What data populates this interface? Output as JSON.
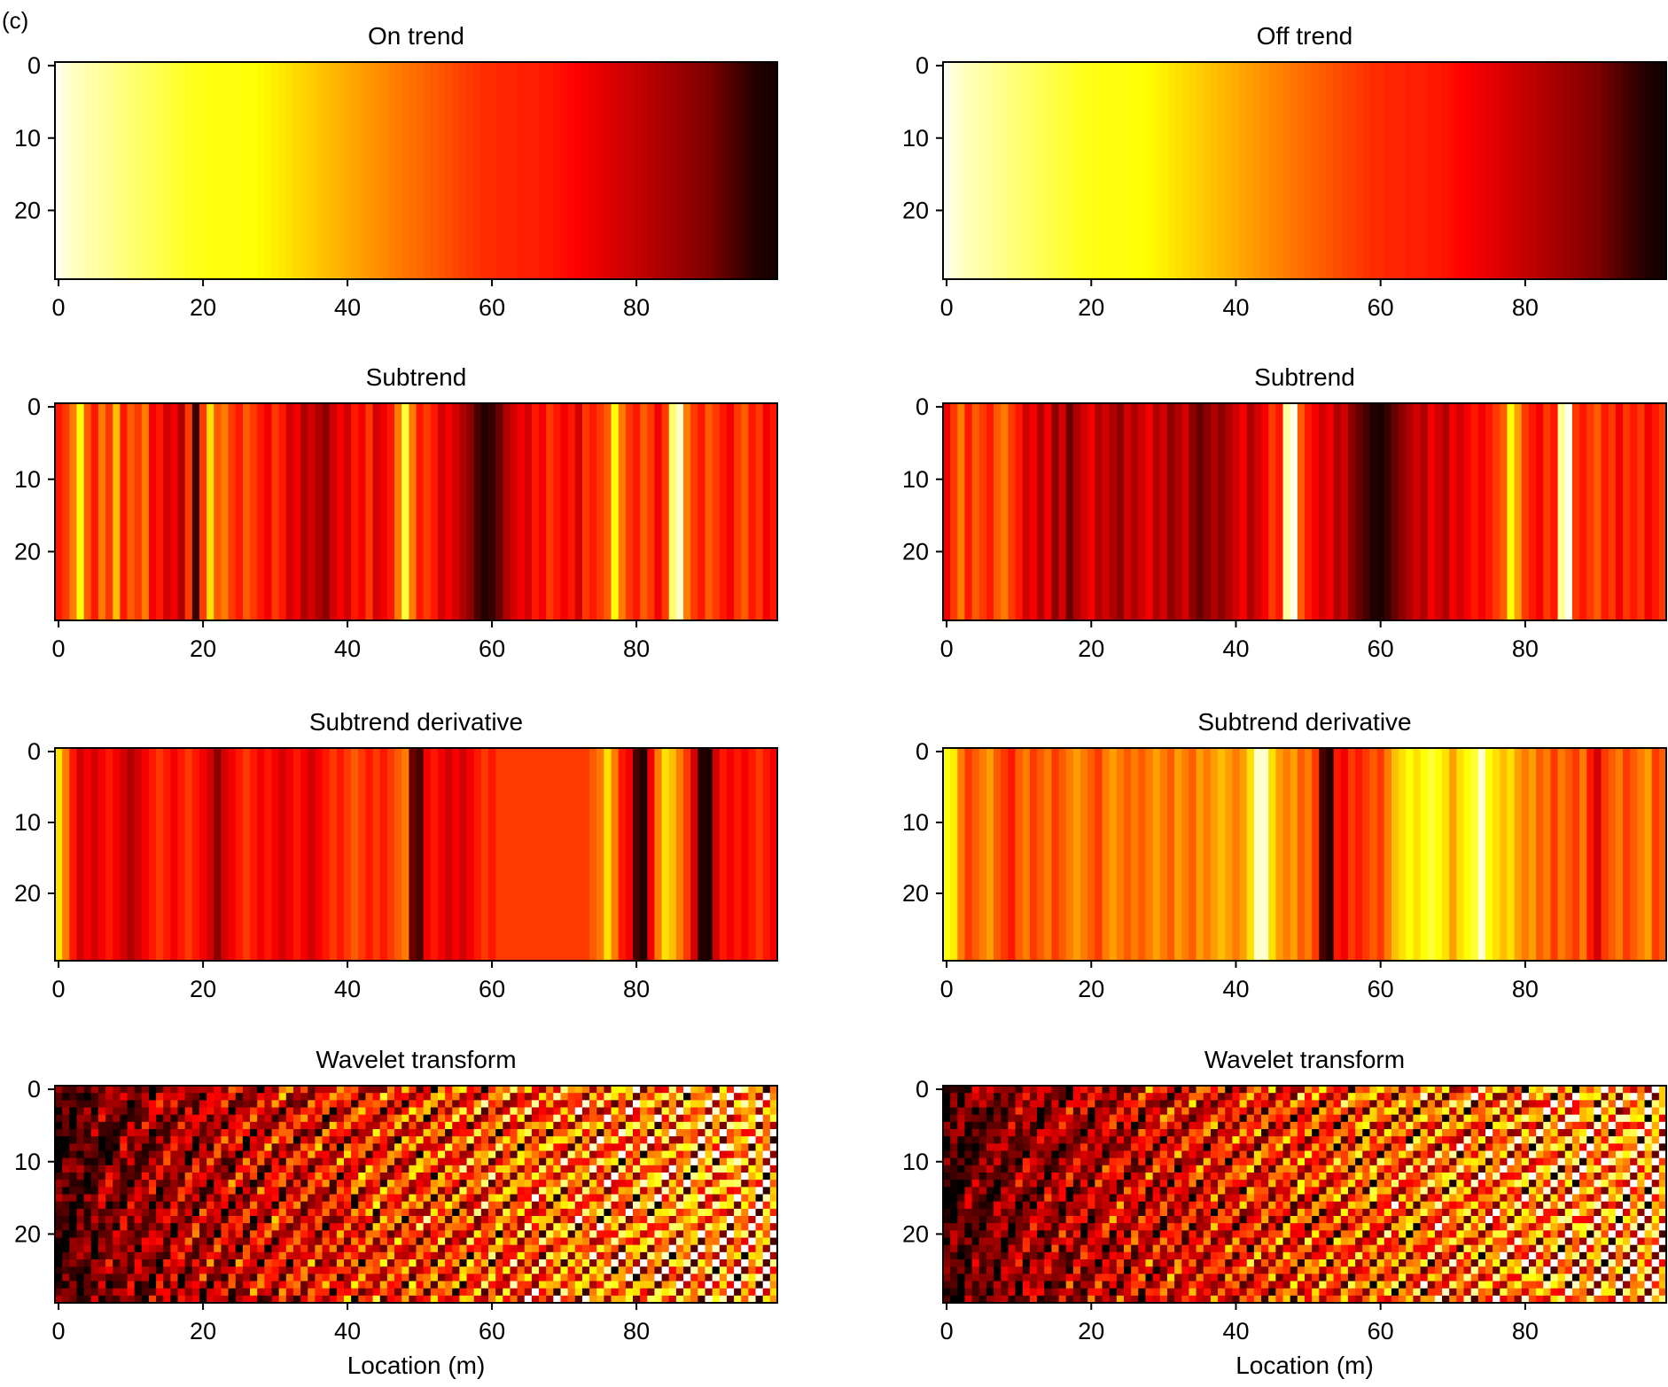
{
  "panel_label": "(c)",
  "chart_data": [
    {
      "id": "on-trend",
      "type": "heatmap",
      "title": "On trend",
      "xlabel": "",
      "ylabel": "",
      "xlim": [
        0,
        99
      ],
      "ylim": [
        0,
        29
      ],
      "xticks": [
        "0",
        "20",
        "40",
        "60",
        "80"
      ],
      "yticks": [
        "0",
        "10",
        "20"
      ],
      "colormap": "hot",
      "column_values": [
        0.98,
        0.96,
        0.94,
        0.93,
        0.92,
        0.91,
        0.9,
        0.89,
        0.88,
        0.87,
        0.86,
        0.85,
        0.84,
        0.83,
        0.82,
        0.81,
        0.8,
        0.79,
        0.78,
        0.77,
        0.77,
        0.76,
        0.76,
        0.76,
        0.76,
        0.76,
        0.75,
        0.75,
        0.74,
        0.73,
        0.72,
        0.71,
        0.7,
        0.69,
        0.68,
        0.67,
        0.66,
        0.65,
        0.64,
        0.63,
        0.62,
        0.61,
        0.6,
        0.59,
        0.58,
        0.57,
        0.56,
        0.55,
        0.54,
        0.53,
        0.52,
        0.51,
        0.5,
        0.49,
        0.48,
        0.47,
        0.46,
        0.45,
        0.44,
        0.43,
        0.43,
        0.42,
        0.42,
        0.42,
        0.41,
        0.41,
        0.41,
        0.4,
        0.4,
        0.39,
        0.38,
        0.37,
        0.36,
        0.35,
        0.34,
        0.33,
        0.32,
        0.31,
        0.3,
        0.29,
        0.28,
        0.27,
        0.26,
        0.25,
        0.24,
        0.23,
        0.22,
        0.21,
        0.2,
        0.19,
        0.18,
        0.16,
        0.14,
        0.12,
        0.1,
        0.08,
        0.06,
        0.05,
        0.04,
        0.03
      ]
    },
    {
      "id": "off-trend",
      "type": "heatmap",
      "title": "Off trend",
      "xlabel": "",
      "ylabel": "",
      "xlim": [
        0,
        99
      ],
      "ylim": [
        0,
        29
      ],
      "xticks": [
        "0",
        "20",
        "40",
        "60",
        "80"
      ],
      "yticks": [
        "0",
        "10",
        "20"
      ],
      "colormap": "hot",
      "column_values": [
        0.98,
        0.96,
        0.94,
        0.93,
        0.92,
        0.91,
        0.9,
        0.89,
        0.88,
        0.87,
        0.86,
        0.85,
        0.84,
        0.83,
        0.82,
        0.81,
        0.8,
        0.79,
        0.78,
        0.77,
        0.77,
        0.76,
        0.76,
        0.76,
        0.76,
        0.76,
        0.75,
        0.75,
        0.74,
        0.73,
        0.72,
        0.71,
        0.7,
        0.69,
        0.68,
        0.67,
        0.66,
        0.65,
        0.64,
        0.63,
        0.62,
        0.61,
        0.6,
        0.59,
        0.58,
        0.57,
        0.56,
        0.55,
        0.54,
        0.53,
        0.52,
        0.51,
        0.5,
        0.49,
        0.48,
        0.47,
        0.46,
        0.45,
        0.44,
        0.43,
        0.43,
        0.42,
        0.42,
        0.42,
        0.41,
        0.41,
        0.41,
        0.4,
        0.4,
        0.39,
        0.38,
        0.37,
        0.36,
        0.35,
        0.34,
        0.33,
        0.32,
        0.31,
        0.3,
        0.29,
        0.28,
        0.27,
        0.26,
        0.25,
        0.24,
        0.23,
        0.22,
        0.21,
        0.2,
        0.19,
        0.18,
        0.16,
        0.14,
        0.12,
        0.1,
        0.08,
        0.06,
        0.05,
        0.04,
        0.03
      ]
    },
    {
      "id": "subtrend-left",
      "type": "heatmap",
      "title": "Subtrend",
      "xlabel": "",
      "ylabel": "",
      "xlim": [
        0,
        99
      ],
      "ylim": [
        0,
        29
      ],
      "xticks": [
        "0",
        "20",
        "40",
        "60",
        "80"
      ],
      "yticks": [
        "0",
        "10",
        "20"
      ],
      "colormap": "hot",
      "column_values": [
        0.4,
        0.45,
        0.55,
        0.75,
        0.5,
        0.4,
        0.55,
        0.45,
        0.65,
        0.4,
        0.5,
        0.45,
        0.55,
        0.35,
        0.4,
        0.3,
        0.35,
        0.25,
        0.45,
        0.08,
        0.45,
        0.7,
        0.5,
        0.55,
        0.45,
        0.4,
        0.5,
        0.45,
        0.4,
        0.35,
        0.45,
        0.4,
        0.3,
        0.35,
        0.25,
        0.3,
        0.25,
        0.2,
        0.3,
        0.35,
        0.3,
        0.4,
        0.35,
        0.45,
        0.3,
        0.35,
        0.4,
        0.55,
        0.8,
        0.55,
        0.4,
        0.45,
        0.4,
        0.3,
        0.35,
        0.3,
        0.25,
        0.2,
        0.1,
        0.05,
        0.08,
        0.15,
        0.25,
        0.3,
        0.35,
        0.3,
        0.4,
        0.35,
        0.45,
        0.4,
        0.35,
        0.4,
        0.3,
        0.45,
        0.4,
        0.45,
        0.5,
        0.75,
        0.55,
        0.45,
        0.4,
        0.5,
        0.45,
        0.35,
        0.45,
        0.85,
        0.95,
        0.55,
        0.45,
        0.4,
        0.5,
        0.45,
        0.4,
        0.35,
        0.45,
        0.5,
        0.4,
        0.45,
        0.35,
        0.4
      ]
    },
    {
      "id": "subtrend-right",
      "type": "heatmap",
      "title": "Subtrend",
      "xlabel": "",
      "ylabel": "",
      "xlim": [
        0,
        99
      ],
      "ylim": [
        0,
        29
      ],
      "xticks": [
        "0",
        "20",
        "40",
        "60",
        "80"
      ],
      "yticks": [
        "0",
        "10",
        "20"
      ],
      "colormap": "hot",
      "column_values": [
        0.35,
        0.45,
        0.55,
        0.4,
        0.5,
        0.45,
        0.4,
        0.5,
        0.55,
        0.45,
        0.4,
        0.3,
        0.35,
        0.25,
        0.35,
        0.2,
        0.3,
        0.15,
        0.25,
        0.3,
        0.35,
        0.25,
        0.3,
        0.25,
        0.2,
        0.3,
        0.25,
        0.3,
        0.35,
        0.25,
        0.3,
        0.2,
        0.25,
        0.3,
        0.2,
        0.15,
        0.2,
        0.25,
        0.2,
        0.25,
        0.3,
        0.35,
        0.25,
        0.3,
        0.35,
        0.45,
        0.4,
        0.9,
        0.98,
        0.5,
        0.4,
        0.35,
        0.3,
        0.35,
        0.25,
        0.3,
        0.2,
        0.15,
        0.1,
        0.05,
        0.04,
        0.08,
        0.15,
        0.2,
        0.25,
        0.3,
        0.25,
        0.35,
        0.3,
        0.25,
        0.35,
        0.3,
        0.35,
        0.4,
        0.35,
        0.4,
        0.45,
        0.5,
        0.75,
        0.6,
        0.45,
        0.4,
        0.35,
        0.45,
        0.4,
        0.9,
        0.98,
        0.45,
        0.4,
        0.45,
        0.5,
        0.4,
        0.45,
        0.35,
        0.45,
        0.4,
        0.45,
        0.35,
        0.4,
        0.45
      ]
    },
    {
      "id": "derivative-left",
      "type": "heatmap",
      "title": "Subtrend derivative",
      "xlabel": "",
      "ylabel": "",
      "xlim": [
        0,
        99
      ],
      "ylim": [
        0,
        29
      ],
      "xticks": [
        "0",
        "20",
        "40",
        "60",
        "80"
      ],
      "yticks": [
        "0",
        "10",
        "20"
      ],
      "colormap": "hot",
      "column_values": [
        0.7,
        0.55,
        0.4,
        0.3,
        0.35,
        0.3,
        0.35,
        0.4,
        0.35,
        0.3,
        0.25,
        0.3,
        0.35,
        0.4,
        0.45,
        0.4,
        0.35,
        0.4,
        0.45,
        0.4,
        0.35,
        0.3,
        0.2,
        0.3,
        0.35,
        0.4,
        0.45,
        0.4,
        0.35,
        0.4,
        0.35,
        0.3,
        0.35,
        0.4,
        0.35,
        0.3,
        0.35,
        0.4,
        0.45,
        0.4,
        0.45,
        0.5,
        0.45,
        0.4,
        0.45,
        0.4,
        0.45,
        0.5,
        0.55,
        0.15,
        0.1,
        0.35,
        0.4,
        0.35,
        0.3,
        0.35,
        0.3,
        0.35,
        0.4,
        0.45,
        0.4,
        0.45,
        0.45,
        0.45,
        0.45,
        0.45,
        0.45,
        0.45,
        0.45,
        0.45,
        0.45,
        0.45,
        0.45,
        0.45,
        0.5,
        0.55,
        0.7,
        0.55,
        0.4,
        0.35,
        0.1,
        0.05,
        0.35,
        0.55,
        0.7,
        0.65,
        0.55,
        0.45,
        0.3,
        0.05,
        0.04,
        0.3,
        0.4,
        0.35,
        0.4,
        0.35,
        0.4,
        0.45,
        0.4,
        0.35
      ]
    },
    {
      "id": "derivative-right",
      "type": "heatmap",
      "title": "Subtrend derivative",
      "xlabel": "",
      "ylabel": "",
      "xlim": [
        0,
        99
      ],
      "ylim": [
        0,
        29
      ],
      "xticks": [
        "0",
        "20",
        "40",
        "60",
        "80"
      ],
      "yticks": [
        "0",
        "10",
        "20"
      ],
      "colormap": "hot",
      "column_values": [
        0.75,
        0.72,
        0.55,
        0.45,
        0.5,
        0.55,
        0.6,
        0.5,
        0.45,
        0.4,
        0.5,
        0.55,
        0.45,
        0.5,
        0.55,
        0.45,
        0.5,
        0.55,
        0.6,
        0.55,
        0.5,
        0.45,
        0.55,
        0.6,
        0.55,
        0.5,
        0.55,
        0.5,
        0.55,
        0.6,
        0.55,
        0.5,
        0.6,
        0.55,
        0.5,
        0.6,
        0.55,
        0.6,
        0.65,
        0.6,
        0.55,
        0.6,
        0.7,
        0.95,
        0.95,
        0.7,
        0.6,
        0.55,
        0.6,
        0.5,
        0.55,
        0.45,
        0.1,
        0.05,
        0.4,
        0.35,
        0.45,
        0.4,
        0.45,
        0.5,
        0.45,
        0.55,
        0.65,
        0.7,
        0.75,
        0.7,
        0.75,
        0.8,
        0.75,
        0.7,
        0.6,
        0.7,
        0.75,
        0.8,
        0.95,
        0.75,
        0.7,
        0.65,
        0.7,
        0.6,
        0.55,
        0.6,
        0.5,
        0.55,
        0.45,
        0.55,
        0.5,
        0.45,
        0.55,
        0.4,
        0.3,
        0.45,
        0.5,
        0.55,
        0.45,
        0.5,
        0.55,
        0.6,
        0.45,
        0.5
      ]
    },
    {
      "id": "wavelet-left",
      "type": "heatmap",
      "title": "Wavelet transform",
      "xlabel": "Location (m)",
      "ylabel": "",
      "xlim": [
        0,
        99
      ],
      "ylim": [
        0,
        29
      ],
      "xticks": [
        "0",
        "20",
        "40",
        "60",
        "80"
      ],
      "yticks": [
        "0",
        "10",
        "20"
      ],
      "colormap": "hot"
    },
    {
      "id": "wavelet-right",
      "type": "heatmap",
      "title": "Wavelet transform",
      "xlabel": "Location (m)",
      "ylabel": "",
      "xlim": [
        0,
        99
      ],
      "ylim": [
        0,
        29
      ],
      "xticks": [
        "0",
        "20",
        "40",
        "60",
        "80"
      ],
      "yticks": [
        "0",
        "10",
        "20"
      ],
      "colormap": "hot"
    }
  ]
}
